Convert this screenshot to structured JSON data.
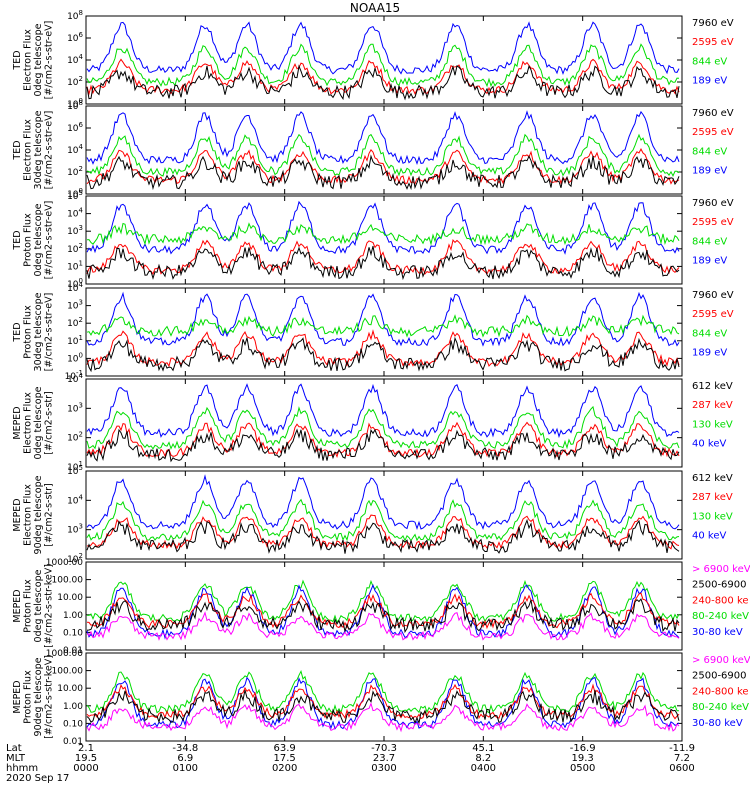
{
  "title": "NOAA15",
  "colors": {
    "blue": "#0000ff",
    "red": "#ff0000",
    "green": "#00dd00",
    "black": "#000000",
    "magenta": "#ff00ff"
  },
  "chart_data": [
    {
      "type": "line",
      "ylabel": [
        "TED",
        "Electron Flux",
        "0deg telescope",
        "[#/cm2-s-str-eV]"
      ],
      "y_ticks": [
        "10^0",
        "10^2",
        "10^4",
        "10^6",
        "10^8"
      ],
      "legend": [
        {
          "label": "7960 eV",
          "color": "black"
        },
        {
          "label": "2595 eV",
          "color": "red"
        },
        {
          "label": "844 eV",
          "color": "green"
        },
        {
          "label": "189 eV",
          "color": "blue"
        }
      ]
    },
    {
      "type": "line",
      "ylabel": [
        "TED",
        "Electron Flux",
        "30deg telescope",
        "[#/cm2-s-str-eV]"
      ],
      "y_ticks": [
        "10^0",
        "10^2",
        "10^4",
        "10^6",
        "10^8"
      ],
      "legend": [
        {
          "label": "7960 eV",
          "color": "black"
        },
        {
          "label": "2595 eV",
          "color": "red"
        },
        {
          "label": "844 eV",
          "color": "green"
        },
        {
          "label": "189 eV",
          "color": "blue"
        }
      ]
    },
    {
      "type": "line",
      "ylabel": [
        "TED",
        "Proton Flux",
        "0deg telescope",
        "[#/cm2-s-str-eV]"
      ],
      "y_ticks": [
        "10^0",
        "10^1",
        "10^2",
        "10^3",
        "10^4",
        "10^5"
      ],
      "legend": [
        {
          "label": "7960 eV",
          "color": "black"
        },
        {
          "label": "2595 eV",
          "color": "red"
        },
        {
          "label": "844 eV",
          "color": "green"
        },
        {
          "label": "189 eV",
          "color": "blue"
        }
      ]
    },
    {
      "type": "line",
      "ylabel": [
        "TED",
        "Proton Flux",
        "30deg telescope",
        "[#/cm2-s-str-eV]"
      ],
      "y_ticks": [
        "10^-1",
        "10^0",
        "10^1",
        "10^2",
        "10^3",
        "10^4"
      ],
      "legend": [
        {
          "label": "7960 eV",
          "color": "black"
        },
        {
          "label": "2595 eV",
          "color": "red"
        },
        {
          "label": "844 eV",
          "color": "green"
        },
        {
          "label": "189 eV",
          "color": "blue"
        }
      ]
    },
    {
      "type": "line",
      "ylabel": [
        "MEPED",
        "Electron Flux",
        "0deg telescope",
        "[#/cm2-s-str]"
      ],
      "y_ticks": [
        "10^1",
        "10^2",
        "10^3",
        "10^4"
      ],
      "legend": [
        {
          "label": "612 keV",
          "color": "black"
        },
        {
          "label": "287 keV",
          "color": "red"
        },
        {
          "label": "130 keV",
          "color": "green"
        },
        {
          "label": "40 keV",
          "color": "blue"
        }
      ]
    },
    {
      "type": "line",
      "ylabel": [
        "MEPED",
        "Electron Flux",
        "90deg telescope",
        "[#/cm2-s-str]"
      ],
      "y_ticks": [
        "10^2",
        "10^3",
        "10^4",
        "10^5"
      ],
      "legend": [
        {
          "label": "612 keV",
          "color": "black"
        },
        {
          "label": "287 keV",
          "color": "red"
        },
        {
          "label": "130 keV",
          "color": "green"
        },
        {
          "label": "40 keV",
          "color": "blue"
        }
      ]
    },
    {
      "type": "line",
      "ylabel": [
        "MEPED",
        "Proton Flux",
        "0deg telescope",
        "[#/cm2-s-str-keV]"
      ],
      "y_ticks": [
        "0.01",
        "0.10",
        "1.00",
        "10.00",
        "100.00",
        "1000.00"
      ],
      "legend": [
        {
          "label": "> 6900 keV",
          "color": "magenta"
        },
        {
          "label": "2500-6900",
          "color": "black"
        },
        {
          "label": "240-800 ke",
          "color": "red"
        },
        {
          "label": "80-240 keV",
          "color": "green"
        },
        {
          "label": "30-80 keV",
          "color": "blue"
        }
      ]
    },
    {
      "type": "line",
      "ylabel": [
        "MEPED",
        "Proton Flux",
        "90deg telescope",
        "[#/cm2-s-str-keV]"
      ],
      "y_ticks": [
        "0.01",
        "0.10",
        "1.00",
        "10.00",
        "100.00",
        "1000.00"
      ],
      "legend": [
        {
          "label": "> 6900 keV",
          "color": "magenta"
        },
        {
          "label": "2500-6900",
          "color": "black"
        },
        {
          "label": "240-800 ke",
          "color": "red"
        },
        {
          "label": "80-240 keV",
          "color": "green"
        },
        {
          "label": "30-80 keV",
          "color": "blue"
        }
      ]
    }
  ],
  "x_axis": {
    "row_labels": [
      "Lat",
      "MLT",
      "hhmm"
    ],
    "date": "2020 Sep 17",
    "ticks": [
      {
        "lat": "2.1",
        "mlt": "19.5",
        "hhmm": "0000"
      },
      {
        "lat": "-34.8",
        "mlt": "6.9",
        "hhmm": "0100"
      },
      {
        "lat": "63.9",
        "mlt": "17.5",
        "hhmm": "0200"
      },
      {
        "lat": "-70.3",
        "mlt": "23.7",
        "hhmm": "0300"
      },
      {
        "lat": "45.1",
        "mlt": "8.2",
        "hhmm": "0400"
      },
      {
        "lat": "-16.9",
        "mlt": "19.3",
        "hhmm": "0500"
      },
      {
        "lat": "-11.9",
        "mlt": "7.2",
        "hhmm": "0600"
      }
    ]
  }
}
